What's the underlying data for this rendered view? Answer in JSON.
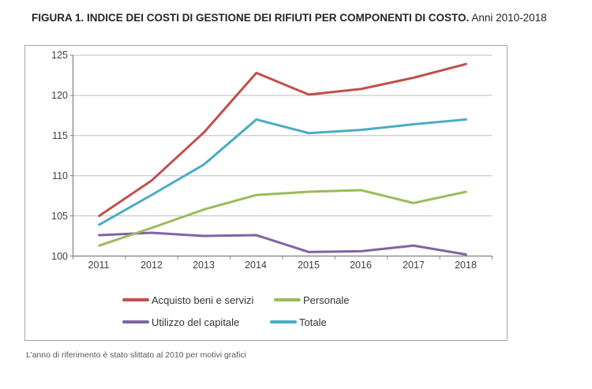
{
  "title": {
    "main": "FIGURA 1. INDICE DEI COSTI DI GESTIONE DEI RIFIUTI PER COMPONENTI DI COSTO.",
    "suffix": " Anni 2010-2018"
  },
  "footnote": "L’anno di riferimento è stato slittato al 2010 per motivi grafici",
  "colors": {
    "title_text": "#262626",
    "tick_label": "#3f3f3f",
    "gridline": "#bfbfbf",
    "axis": "#808080",
    "box_border": "#a6a6a6",
    "footnote_text": "#595959",
    "series_red": "#C0504D",
    "series_green": "#9BBB59",
    "series_purple": "#8064A2",
    "series_teal": "#4BACC6"
  },
  "chart_data": {
    "type": "line",
    "categories": [
      "2011",
      "2012",
      "2013",
      "2014",
      "2015",
      "2016",
      "2017",
      "2018"
    ],
    "series": [
      {
        "name": "Acquisto beni e servizi",
        "color": "#C0504D",
        "values": [
          105.0,
          109.4,
          115.4,
          122.8,
          120.1,
          120.8,
          122.2,
          123.9
        ]
      },
      {
        "name": "Personale",
        "color": "#9BBB59",
        "values": [
          101.3,
          103.5,
          105.8,
          107.6,
          108.0,
          108.2,
          106.6,
          108.0
        ]
      },
      {
        "name": "Utilizzo del capitale",
        "color": "#8064A2",
        "values": [
          102.6,
          102.9,
          102.5,
          102.6,
          100.5,
          100.6,
          101.3,
          100.2
        ]
      },
      {
        "name": "Totale",
        "color": "#4BACC6",
        "values": [
          103.9,
          107.6,
          111.4,
          117.0,
          115.3,
          115.7,
          116.4,
          117.0
        ]
      }
    ],
    "title": "FIGURA 1. INDICE DEI COSTI DI GESTIONE DEI RIFIUTI PER COMPONENTI DI COSTO. Anni 2010-2018",
    "xlabel": "",
    "ylabel": "",
    "ylim": [
      100,
      125
    ],
    "yticks": [
      125,
      120,
      115,
      110,
      105,
      100
    ],
    "grid": true,
    "legend_position": "bottom",
    "z_order": [
      0,
      2,
      1,
      3
    ],
    "line_width": 3
  }
}
